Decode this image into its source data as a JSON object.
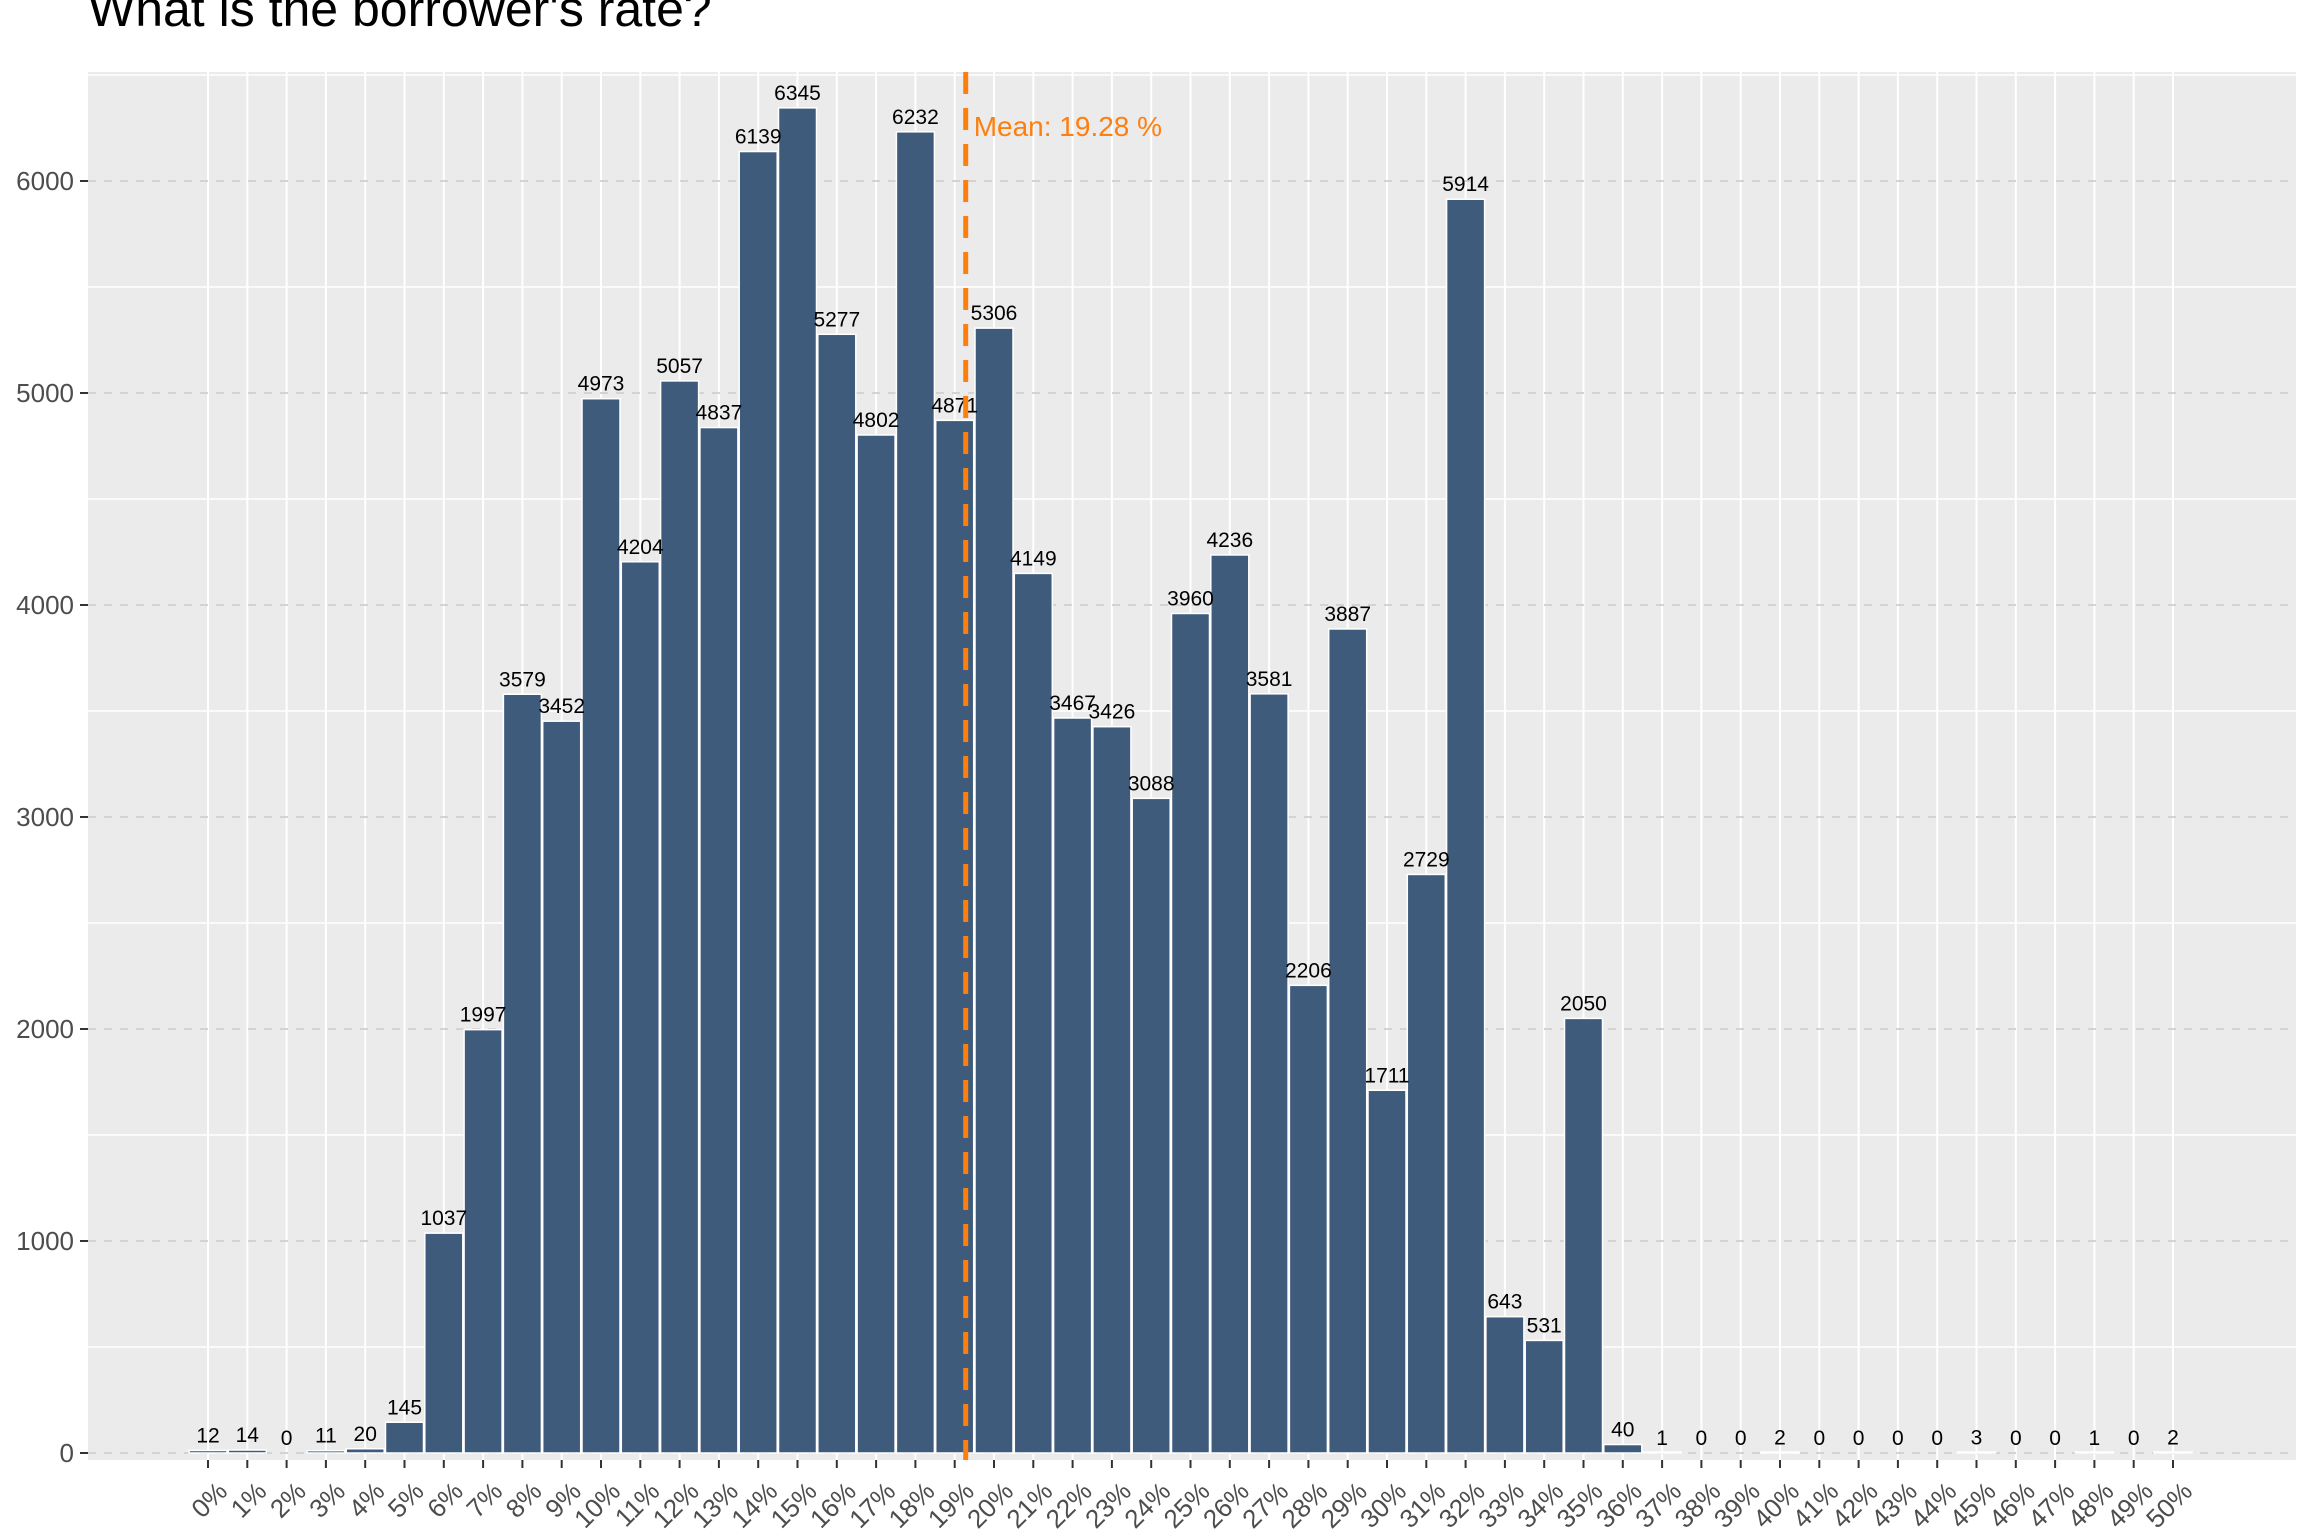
{
  "chart_data": {
    "type": "bar",
    "title": "What is the borrower's rate?",
    "xlabel": "",
    "ylabel": "",
    "categories": [
      "0%",
      "1%",
      "2%",
      "3%",
      "4%",
      "5%",
      "6%",
      "7%",
      "8%",
      "9%",
      "10%",
      "11%",
      "12%",
      "13%",
      "14%",
      "15%",
      "16%",
      "17%",
      "18%",
      "19%",
      "20%",
      "21%",
      "22%",
      "23%",
      "24%",
      "25%",
      "26%",
      "27%",
      "28%",
      "29%",
      "30%",
      "31%",
      "32%",
      "33%",
      "34%",
      "35%",
      "36%",
      "37%",
      "38%",
      "39%",
      "40%",
      "41%",
      "42%",
      "43%",
      "44%",
      "45%",
      "46%",
      "47%",
      "48%",
      "49%",
      "50%"
    ],
    "values": [
      12,
      14,
      0,
      11,
      20,
      145,
      1037,
      1997,
      3579,
      3452,
      4973,
      4204,
      5057,
      4837,
      6139,
      6345,
      5277,
      4802,
      6232,
      4871,
      5306,
      4149,
      3467,
      3426,
      3088,
      3960,
      4236,
      3581,
      2206,
      3887,
      1711,
      2729,
      5914,
      643,
      531,
      2050,
      40,
      1,
      0,
      0,
      2,
      0,
      0,
      0,
      0,
      3,
      0,
      0,
      1,
      0,
      2
    ],
    "yticks": [
      0,
      1000,
      2000,
      3000,
      4000,
      5000,
      6000
    ],
    "ylim": [
      0,
      6500
    ],
    "mean": {
      "value": 19.28,
      "label": "Mean: 19.28 %",
      "color": "#FF7F0E"
    },
    "bar_color": "#3F5B7C",
    "panel_color": "#EBEBEB",
    "grid": true,
    "legend": "none"
  }
}
